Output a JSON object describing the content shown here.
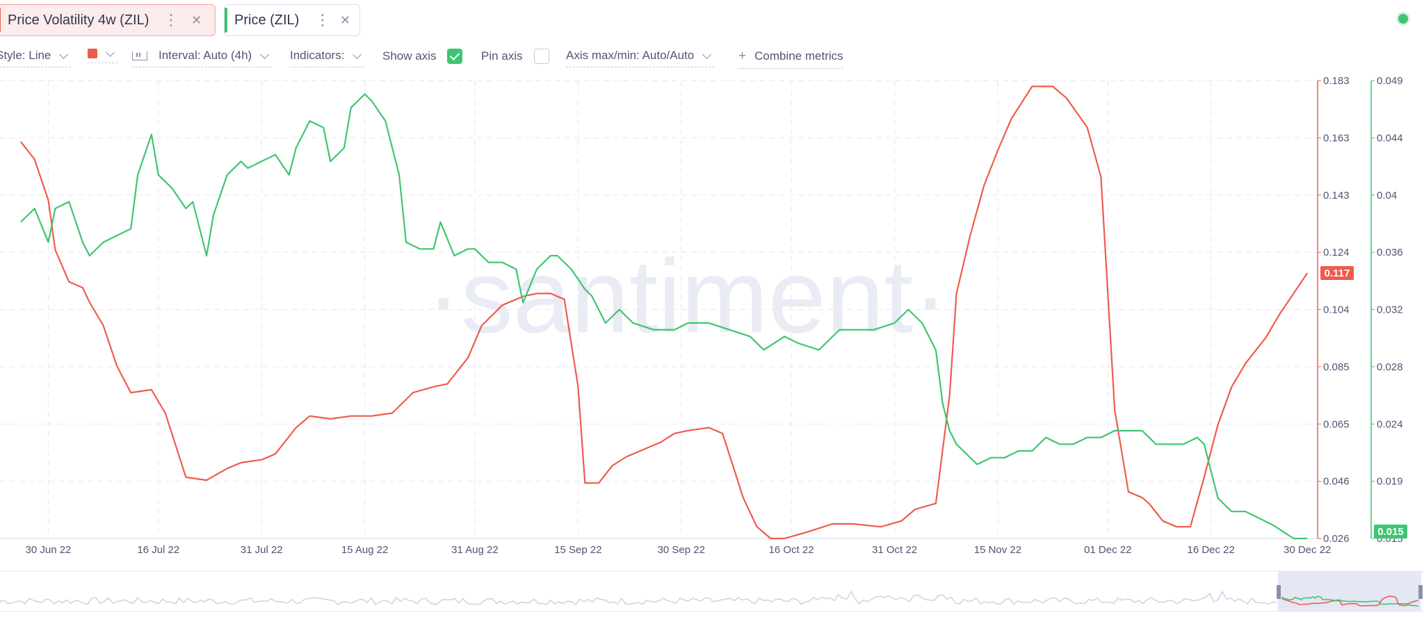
{
  "tabs": [
    {
      "label": "Price Volatility 4w (ZIL)",
      "color": "#ef5b4c"
    },
    {
      "label": "Price (ZIL)",
      "color": "#3ec56f"
    }
  ],
  "controls": {
    "style_label": "Style: Line",
    "interval_label": "Interval: Auto (4h)",
    "indicators_label": "Indicators:",
    "show_axis_label": "Show axis",
    "show_axis_checked": true,
    "pin_axis_label": "Pin axis",
    "pin_axis_checked": false,
    "axis_minmax_label": "Axis max/min: Auto/Auto",
    "combine_label": "Combine metrics",
    "plus_symbol": "+"
  },
  "icons": {
    "kebab": "⋮",
    "close": "✕"
  },
  "watermark": "·santiment·",
  "chart_data": {
    "type": "line",
    "x_tick_labels": [
      "30 Jun 22",
      "16 Jul 22",
      "31 Jul 22",
      "15 Aug 22",
      "31 Aug 22",
      "15 Sep 22",
      "30 Sep 22",
      "16 Oct 22",
      "31 Oct 22",
      "15 Nov 22",
      "01 Dec 22",
      "16 Dec 22",
      "30 Dec 22"
    ],
    "grid": true,
    "series": [
      {
        "name": "Price Volatility 4w (ZIL)",
        "color": "#ef5b4c",
        "axis": "left",
        "y_ticks": [
          "0.183",
          "0.163",
          "0.143",
          "0.124",
          "0.104",
          "0.085",
          "0.065",
          "0.046",
          "0.026"
        ],
        "ylim": [
          0.026,
          0.183
        ],
        "current_value_label": "0.117",
        "x": [
          "2022-06-26",
          "2022-06-28",
          "2022-06-30",
          "2022-07-01",
          "2022-07-03",
          "2022-07-05",
          "2022-07-06",
          "2022-07-08",
          "2022-07-10",
          "2022-07-12",
          "2022-07-15",
          "2022-07-17",
          "2022-07-20",
          "2022-07-23",
          "2022-07-26",
          "2022-07-28",
          "2022-07-31",
          "2022-08-02",
          "2022-08-05",
          "2022-08-07",
          "2022-08-10",
          "2022-08-13",
          "2022-08-16",
          "2022-08-19",
          "2022-08-22",
          "2022-08-25",
          "2022-08-27",
          "2022-08-30",
          "2022-09-01",
          "2022-09-04",
          "2022-09-06",
          "2022-09-07",
          "2022-09-09",
          "2022-09-11",
          "2022-09-13",
          "2022-09-15",
          "2022-09-16",
          "2022-09-18",
          "2022-09-20",
          "2022-09-22",
          "2022-09-24",
          "2022-09-27",
          "2022-09-29",
          "2022-10-01",
          "2022-10-04",
          "2022-10-06",
          "2022-10-09",
          "2022-10-11",
          "2022-10-13",
          "2022-10-15",
          "2022-10-18",
          "2022-10-22",
          "2022-10-25",
          "2022-10-29",
          "2022-11-01",
          "2022-11-03",
          "2022-11-06",
          "2022-11-08",
          "2022-11-09",
          "2022-11-11",
          "2022-11-13",
          "2022-11-15",
          "2022-11-17",
          "2022-11-20",
          "2022-11-23",
          "2022-11-25",
          "2022-11-28",
          "2022-11-30",
          "2022-12-02",
          "2022-12-04",
          "2022-12-06",
          "2022-12-07",
          "2022-12-09",
          "2022-12-11",
          "2022-12-13",
          "2022-12-15",
          "2022-12-17",
          "2022-12-19",
          "2022-12-21",
          "2022-12-24",
          "2022-12-26",
          "2022-12-28",
          "2022-12-30"
        ],
        "values": [
          0.162,
          0.156,
          0.142,
          0.125,
          0.114,
          0.112,
          0.107,
          0.099,
          0.085,
          0.076,
          0.077,
          0.069,
          0.047,
          0.046,
          0.05,
          0.052,
          0.053,
          0.055,
          0.064,
          0.068,
          0.067,
          0.068,
          0.068,
          0.069,
          0.076,
          0.078,
          0.079,
          0.088,
          0.099,
          0.106,
          0.108,
          0.109,
          0.11,
          0.11,
          0.108,
          0.078,
          0.045,
          0.045,
          0.051,
          0.054,
          0.056,
          0.059,
          0.062,
          0.063,
          0.064,
          0.062,
          0.04,
          0.03,
          0.026,
          0.026,
          0.028,
          0.031,
          0.031,
          0.03,
          0.032,
          0.036,
          0.038,
          0.075,
          0.11,
          0.13,
          0.147,
          0.159,
          0.17,
          0.181,
          0.181,
          0.177,
          0.167,
          0.15,
          0.07,
          0.042,
          0.04,
          0.038,
          0.032,
          0.03,
          0.03,
          0.047,
          0.065,
          0.078,
          0.086,
          0.095,
          0.103,
          0.11,
          0.117
        ]
      },
      {
        "name": "Price (ZIL)",
        "color": "#3ec56f",
        "axis": "right",
        "y_ticks": [
          "0.049",
          "0.044",
          "0.04",
          "0.036",
          "0.032",
          "0.028",
          "0.024",
          "0.019",
          "0.015"
        ],
        "ylim": [
          0.015,
          0.049
        ],
        "current_value_label": "0.015",
        "x": [
          "2022-06-26",
          "2022-06-28",
          "2022-06-30",
          "2022-07-01",
          "2022-07-03",
          "2022-07-05",
          "2022-07-06",
          "2022-07-08",
          "2022-07-10",
          "2022-07-12",
          "2022-07-13",
          "2022-07-15",
          "2022-07-16",
          "2022-07-18",
          "2022-07-20",
          "2022-07-21",
          "2022-07-23",
          "2022-07-24",
          "2022-07-26",
          "2022-07-28",
          "2022-07-29",
          "2022-07-31",
          "2022-08-02",
          "2022-08-04",
          "2022-08-05",
          "2022-08-07",
          "2022-08-09",
          "2022-08-10",
          "2022-08-12",
          "2022-08-13",
          "2022-08-15",
          "2022-08-16",
          "2022-08-18",
          "2022-08-20",
          "2022-08-21",
          "2022-08-23",
          "2022-08-25",
          "2022-08-26",
          "2022-08-28",
          "2022-08-30",
          "2022-08-31",
          "2022-09-02",
          "2022-09-04",
          "2022-09-06",
          "2022-09-07",
          "2022-09-09",
          "2022-09-11",
          "2022-09-12",
          "2022-09-14",
          "2022-09-16",
          "2022-09-17",
          "2022-09-19",
          "2022-09-21",
          "2022-09-23",
          "2022-09-26",
          "2022-09-29",
          "2022-10-01",
          "2022-10-04",
          "2022-10-07",
          "2022-10-10",
          "2022-10-12",
          "2022-10-15",
          "2022-10-17",
          "2022-10-20",
          "2022-10-23",
          "2022-10-26",
          "2022-10-28",
          "2022-10-31",
          "2022-11-02",
          "2022-11-04",
          "2022-11-06",
          "2022-11-07",
          "2022-11-08",
          "2022-11-09",
          "2022-11-10",
          "2022-11-12",
          "2022-11-14",
          "2022-11-16",
          "2022-11-18",
          "2022-11-20",
          "2022-11-22",
          "2022-11-24",
          "2022-11-26",
          "2022-11-28",
          "2022-11-30",
          "2022-12-02",
          "2022-12-04",
          "2022-12-06",
          "2022-12-08",
          "2022-12-10",
          "2022-12-12",
          "2022-12-14",
          "2022-12-15",
          "2022-12-17",
          "2022-12-19",
          "2022-12-21",
          "2022-12-23",
          "2022-12-25",
          "2022-12-28",
          "2022-12-30"
        ],
        "values": [
          0.0385,
          0.0395,
          0.037,
          0.0395,
          0.04,
          0.037,
          0.036,
          0.037,
          0.0375,
          0.038,
          0.042,
          0.045,
          0.042,
          0.041,
          0.0395,
          0.04,
          0.036,
          0.039,
          0.042,
          0.043,
          0.0425,
          0.043,
          0.0435,
          0.042,
          0.044,
          0.046,
          0.0455,
          0.043,
          0.044,
          0.047,
          0.048,
          0.0475,
          0.046,
          0.042,
          0.037,
          0.0365,
          0.0365,
          0.0385,
          0.036,
          0.0365,
          0.0365,
          0.0355,
          0.0355,
          0.035,
          0.0325,
          0.035,
          0.036,
          0.036,
          0.035,
          0.0335,
          0.033,
          0.031,
          0.032,
          0.031,
          0.0305,
          0.0305,
          0.031,
          0.031,
          0.0305,
          0.03,
          0.029,
          0.03,
          0.0295,
          0.029,
          0.0305,
          0.0305,
          0.0305,
          0.031,
          0.032,
          0.031,
          0.029,
          0.025,
          0.023,
          0.022,
          0.0215,
          0.0205,
          0.021,
          0.021,
          0.0215,
          0.0215,
          0.0225,
          0.022,
          0.022,
          0.0225,
          0.0225,
          0.023,
          0.023,
          0.023,
          0.022,
          0.022,
          0.022,
          0.0225,
          0.022,
          0.018,
          0.017,
          0.017,
          0.0165,
          0.016,
          0.015,
          0.015
        ]
      }
    ]
  }
}
